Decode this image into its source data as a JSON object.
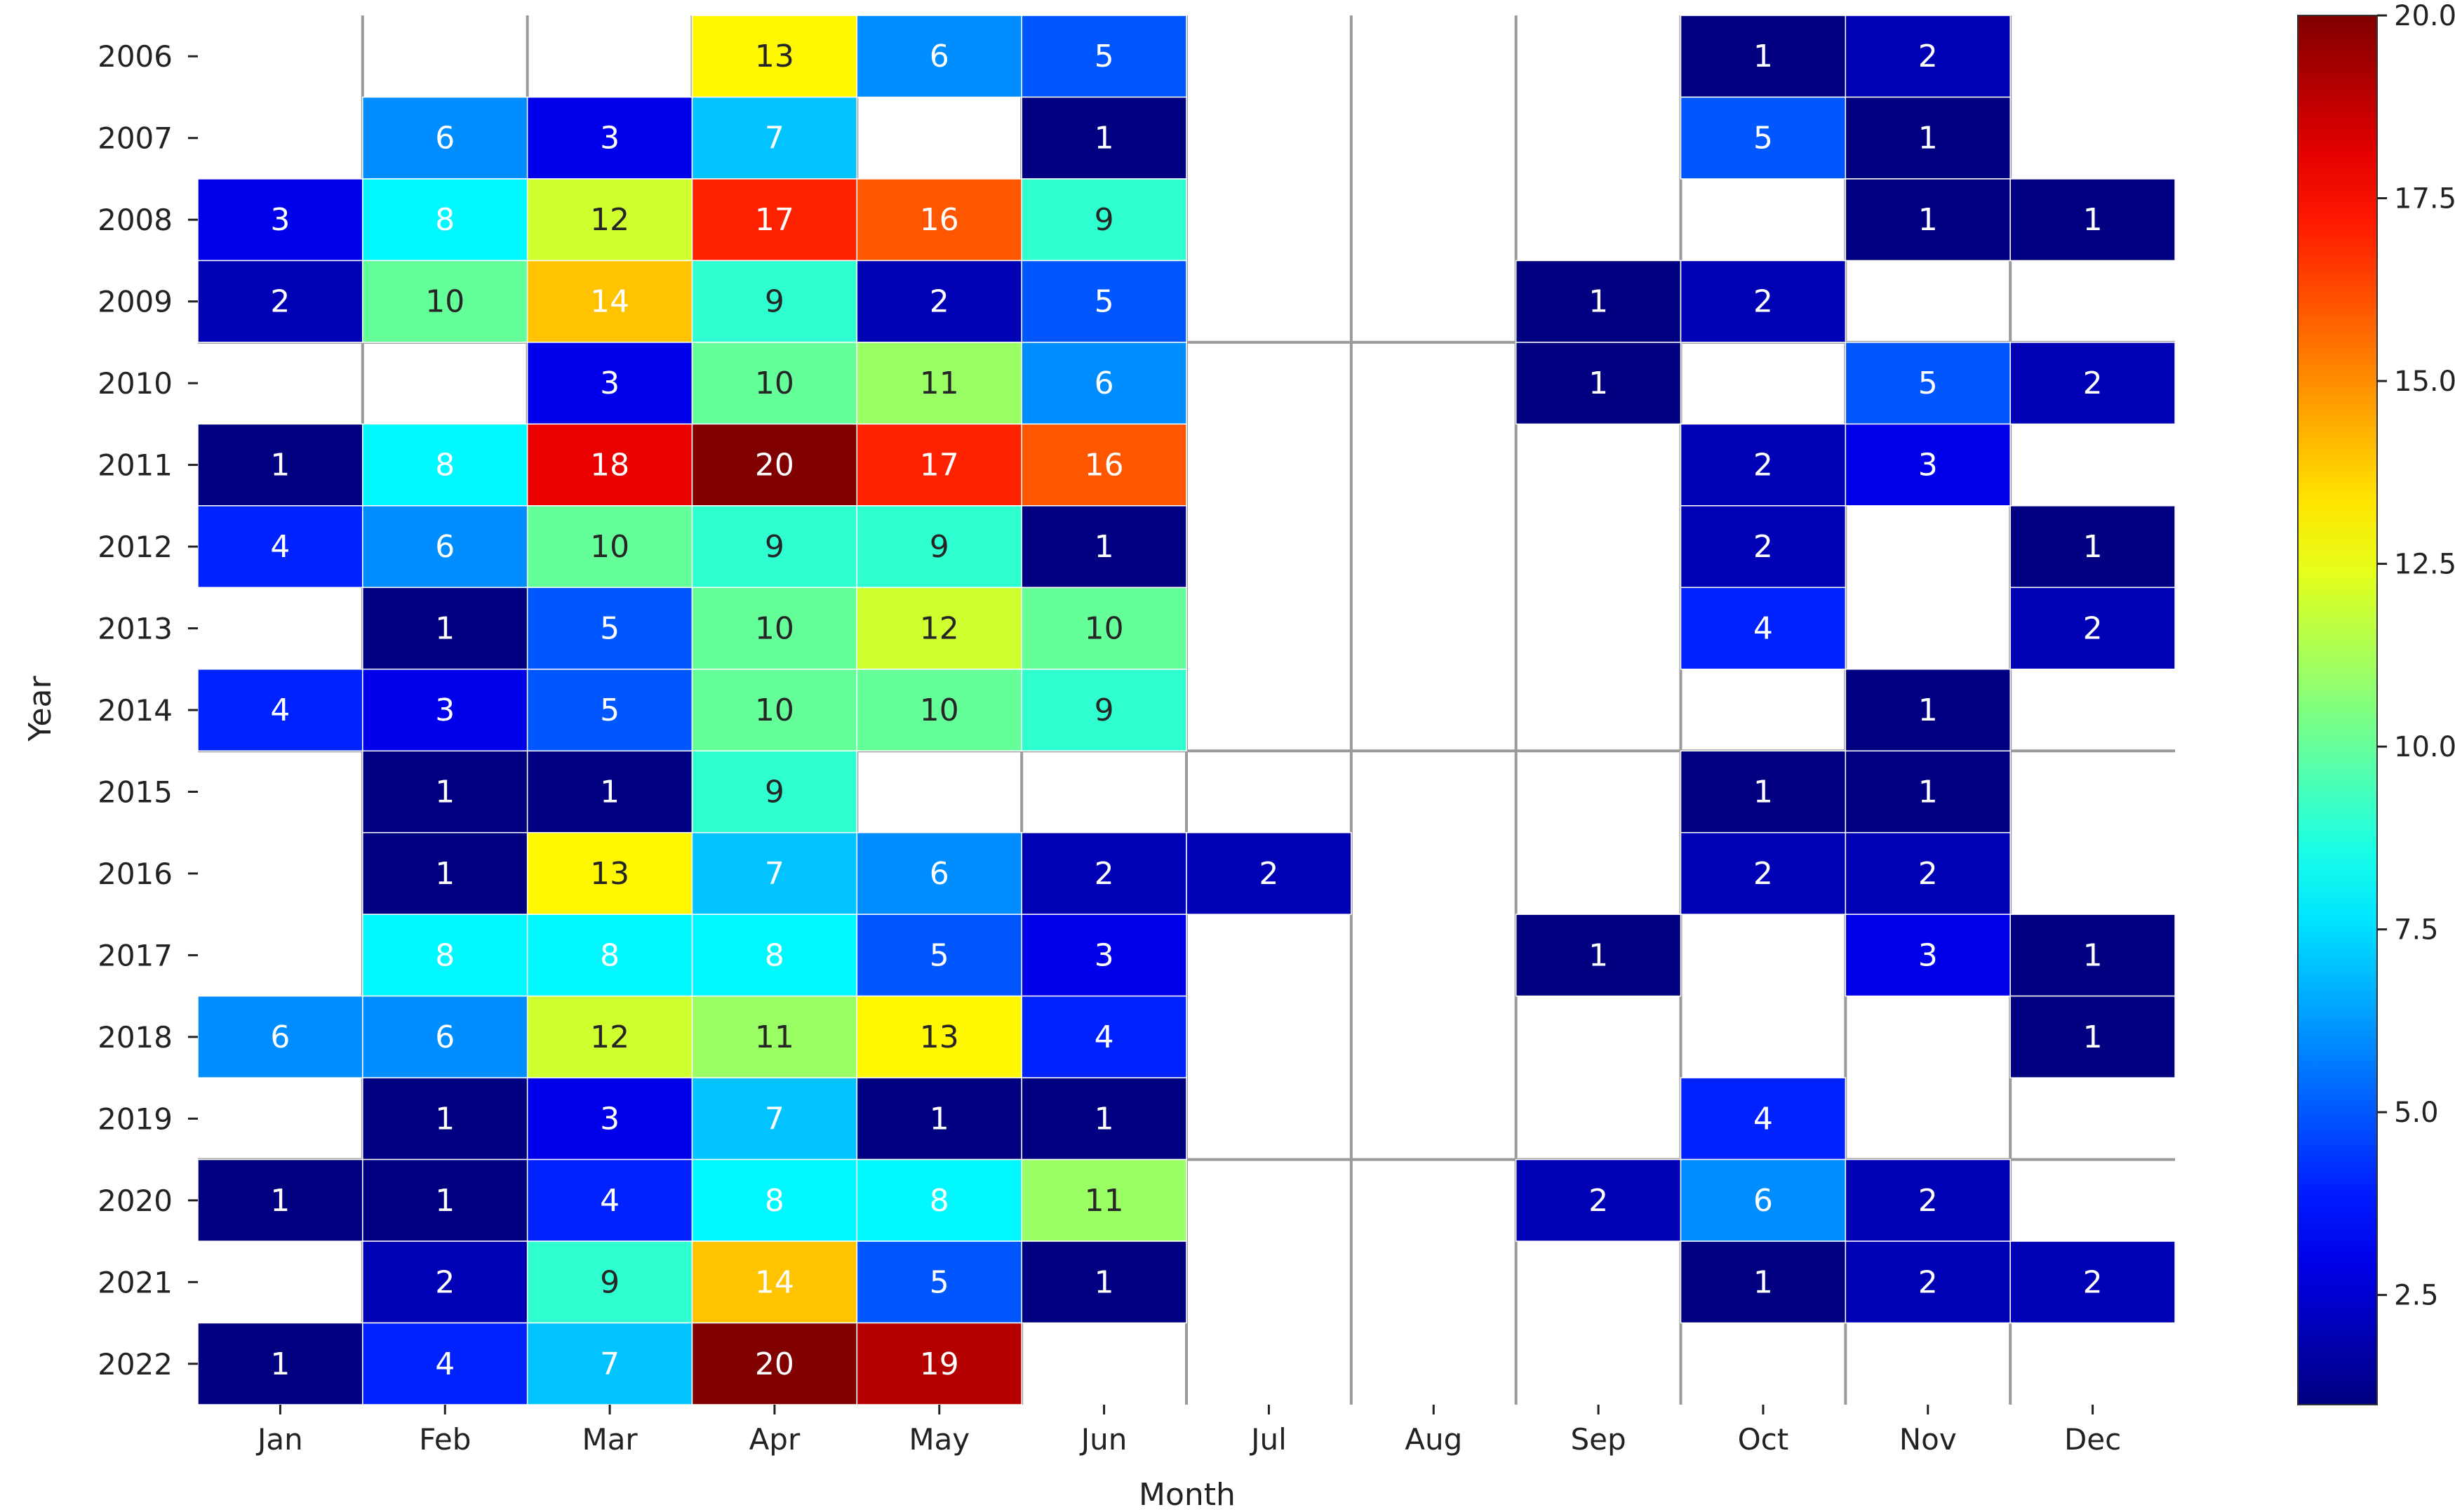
{
  "chart_data": {
    "type": "heatmap",
    "title": "",
    "xlabel": "Month",
    "ylabel": "Year",
    "x": [
      "Jan",
      "Feb",
      "Mar",
      "Apr",
      "May",
      "Jun",
      "Jul",
      "Aug",
      "Sep",
      "Oct",
      "Nov",
      "Dec"
    ],
    "y": [
      "2006",
      "2007",
      "2008",
      "2009",
      "2010",
      "2011",
      "2012",
      "2013",
      "2014",
      "2015",
      "2016",
      "2017",
      "2018",
      "2019",
      "2020",
      "2021",
      "2022"
    ],
    "values": [
      [
        null,
        null,
        null,
        13,
        6,
        5,
        null,
        null,
        null,
        1,
        2,
        null
      ],
      [
        null,
        6,
        3,
        7,
        null,
        1,
        null,
        null,
        null,
        5,
        1,
        null
      ],
      [
        3,
        8,
        12,
        17,
        16,
        9,
        null,
        null,
        null,
        null,
        1,
        1
      ],
      [
        2,
        10,
        14,
        9,
        2,
        5,
        null,
        null,
        1,
        2,
        null,
        null
      ],
      [
        null,
        null,
        3,
        10,
        11,
        6,
        null,
        null,
        1,
        null,
        5,
        2
      ],
      [
        1,
        8,
        18,
        20,
        17,
        16,
        null,
        null,
        null,
        2,
        3,
        null
      ],
      [
        4,
        6,
        10,
        9,
        9,
        1,
        null,
        null,
        null,
        2,
        null,
        1
      ],
      [
        null,
        1,
        5,
        10,
        12,
        10,
        null,
        null,
        null,
        4,
        null,
        2
      ],
      [
        4,
        3,
        5,
        10,
        10,
        9,
        null,
        null,
        null,
        null,
        1,
        null
      ],
      [
        null,
        1,
        1,
        9,
        null,
        null,
        null,
        null,
        null,
        1,
        1,
        null
      ],
      [
        null,
        1,
        13,
        7,
        6,
        2,
        2,
        null,
        null,
        2,
        2,
        null
      ],
      [
        null,
        8,
        8,
        8,
        5,
        3,
        null,
        null,
        1,
        null,
        3,
        1
      ],
      [
        6,
        6,
        12,
        11,
        13,
        4,
        null,
        null,
        null,
        null,
        null,
        1
      ],
      [
        null,
        1,
        3,
        7,
        1,
        1,
        null,
        null,
        null,
        4,
        null,
        null
      ],
      [
        1,
        1,
        4,
        8,
        8,
        11,
        null,
        null,
        2,
        6,
        2,
        null
      ],
      [
        null,
        2,
        9,
        14,
        5,
        1,
        null,
        null,
        null,
        1,
        2,
        2
      ],
      [
        1,
        4,
        7,
        20,
        19,
        null,
        null,
        null,
        null,
        null,
        null,
        null
      ]
    ],
    "colormap": "jet",
    "vmin": 1,
    "vmax": 20,
    "colorbar": {
      "ticks": [
        2.5,
        5.0,
        7.5,
        10.0,
        12.5,
        15.0,
        17.5,
        20.0
      ],
      "tick_labels": [
        "2.5",
        "5.0",
        "7.5",
        "10.0",
        "12.5",
        "15.0",
        "17.5",
        "20.0"
      ]
    },
    "grid": true,
    "legend": "colorbar-right"
  }
}
